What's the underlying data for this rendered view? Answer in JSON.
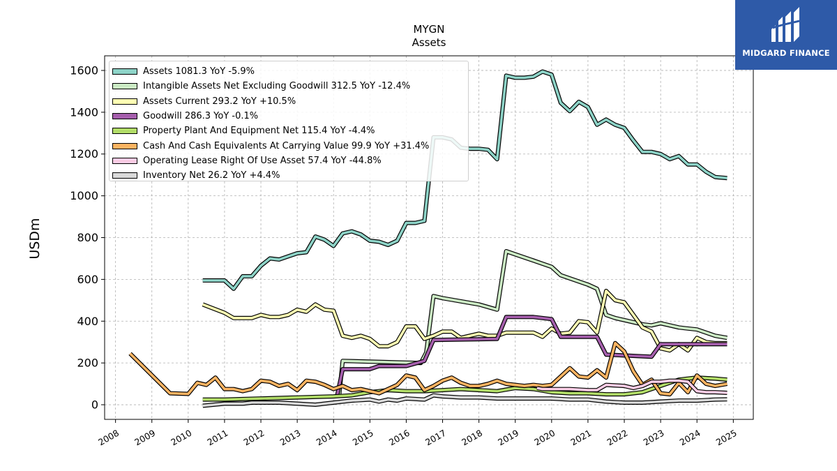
{
  "title": "MYGN",
  "subtitle": "Assets",
  "logo_text": "MIDGARD FINANCE",
  "chart_data": {
    "type": "line",
    "title": "MYGN",
    "subtitle": "Assets",
    "ylabel": "USDm",
    "xlim": [
      2007.7,
      2025.55
    ],
    "ylim": [
      -70,
      1670
    ],
    "yticks": [
      0,
      200,
      400,
      600,
      800,
      1000,
      1200,
      1400,
      1600
    ],
    "xticks": [
      2008,
      2009,
      2010,
      2011,
      2012,
      2013,
      2014,
      2015,
      2016,
      2017,
      2018,
      2019,
      2020,
      2021,
      2022,
      2023,
      2024,
      2025
    ],
    "grid": true,
    "legend_position": "top-left",
    "series": [
      {
        "name": "Assets",
        "legend": "Assets  1081.3 YoY -5.9%",
        "color": "#8dd3c7",
        "x": [
          2010.4,
          2011.0,
          2011.25,
          2011.5,
          2011.75,
          2012.0,
          2012.25,
          2012.5,
          2012.75,
          2013.0,
          2013.25,
          2013.5,
          2013.75,
          2014.0,
          2014.25,
          2014.5,
          2014.75,
          2015.0,
          2015.25,
          2015.5,
          2015.75,
          2016.0,
          2016.25,
          2016.5,
          2016.75,
          2017.0,
          2017.25,
          2017.5,
          2017.75,
          2018.0,
          2018.25,
          2018.5,
          2018.75,
          2019.0,
          2019.25,
          2019.5,
          2019.75,
          2020.0,
          2020.25,
          2020.5,
          2020.75,
          2021.0,
          2021.25,
          2021.5,
          2021.75,
          2022.0,
          2022.25,
          2022.5,
          2022.75,
          2023.0,
          2023.25,
          2023.5,
          2023.75,
          2024.0,
          2024.25,
          2024.5,
          2024.83
        ],
        "y": [
          595,
          595,
          555,
          615,
          615,
          665,
          700,
          695,
          710,
          725,
          730,
          805,
          790,
          760,
          820,
          830,
          815,
          785,
          780,
          765,
          785,
          870,
          870,
          880,
          1280,
          1280,
          1270,
          1230,
          1225,
          1225,
          1220,
          1175,
          1575,
          1565,
          1565,
          1570,
          1595,
          1580,
          1445,
          1405,
          1450,
          1425,
          1340,
          1365,
          1340,
          1325,
          1265,
          1210,
          1210,
          1200,
          1175,
          1190,
          1150,
          1150,
          1115,
          1090,
          1085
        ]
      },
      {
        "name": "Intangible Assets Net Excluding Goodwill",
        "legend": "Intangible Assets Net Excluding Goodwill  312.5 YoY -12.4%",
        "color": "#ccebc5",
        "x": [
          2014.15,
          2014.25,
          2016.4,
          2016.55,
          2016.75,
          2017.0,
          2017.5,
          2018.0,
          2018.5,
          2018.75,
          2019.0,
          2019.5,
          2019.75,
          2020.0,
          2020.25,
          2020.5,
          2020.75,
          2021.0,
          2021.25,
          2021.5,
          2021.75,
          2022.0,
          2022.25,
          2022.5,
          2022.75,
          2023.0,
          2023.25,
          2023.5,
          2023.75,
          2024.0,
          2024.25,
          2024.5,
          2024.83
        ],
        "y": [
          40,
          210,
          200,
          250,
          520,
          510,
          495,
          480,
          455,
          735,
          720,
          690,
          675,
          660,
          620,
          605,
          590,
          575,
          555,
          430,
          415,
          405,
          395,
          385,
          380,
          390,
          380,
          370,
          365,
          360,
          345,
          330,
          320
        ]
      },
      {
        "name": "Assets Current",
        "legend": "Assets Current  293.2 YoY +10.5%",
        "color": "#ffffb3",
        "x": [
          2010.4,
          2011.0,
          2011.25,
          2011.5,
          2011.75,
          2012.0,
          2012.25,
          2012.5,
          2012.75,
          2013.0,
          2013.25,
          2013.5,
          2013.75,
          2014.0,
          2014.25,
          2014.5,
          2014.75,
          2015.0,
          2015.25,
          2015.5,
          2015.75,
          2016.0,
          2016.25,
          2016.5,
          2016.75,
          2017.0,
          2017.25,
          2017.5,
          2017.75,
          2018.0,
          2018.25,
          2018.5,
          2018.75,
          2019.0,
          2019.25,
          2019.5,
          2019.75,
          2020.0,
          2020.25,
          2020.5,
          2020.75,
          2021.0,
          2021.25,
          2021.5,
          2021.75,
          2022.0,
          2022.25,
          2022.5,
          2022.75,
          2023.0,
          2023.25,
          2023.5,
          2023.75,
          2024.0,
          2024.25,
          2024.5,
          2024.83
        ],
        "y": [
          480,
          440,
          415,
          415,
          415,
          430,
          420,
          420,
          430,
          455,
          445,
          480,
          455,
          450,
          330,
          320,
          330,
          315,
          280,
          280,
          300,
          375,
          375,
          315,
          330,
          350,
          350,
          320,
          330,
          340,
          330,
          330,
          345,
          345,
          345,
          345,
          325,
          365,
          340,
          345,
          400,
          395,
          345,
          545,
          500,
          490,
          430,
          370,
          350,
          270,
          260,
          290,
          260,
          320,
          300,
          295,
          295
        ]
      },
      {
        "name": "Goodwill",
        "legend": "Goodwill  286.3 YoY -0.1%",
        "color": "#a65fad",
        "x": [
          2014.1,
          2014.25,
          2015.0,
          2015.25,
          2016.0,
          2016.5,
          2016.75,
          2018.5,
          2018.75,
          2019.5,
          2020.0,
          2020.25,
          2021.25,
          2021.5,
          2022.75,
          2023.0,
          2024.83
        ],
        "y": [
          45,
          170,
          170,
          185,
          185,
          210,
          310,
          315,
          420,
          420,
          410,
          325,
          325,
          240,
          230,
          290,
          290
        ]
      },
      {
        "name": "Property Plant And Equipment Net",
        "legend": "Property Plant And Equipment Net  115.4 YoY -4.4%",
        "color": "#b3de69",
        "x": [
          2010.4,
          2011.0,
          2012.0,
          2013.0,
          2014.0,
          2014.5,
          2015.0,
          2015.5,
          2016.0,
          2016.5,
          2017.0,
          2017.5,
          2018.0,
          2018.5,
          2019.0,
          2019.5,
          2020.0,
          2020.5,
          2021.0,
          2021.5,
          2022.0,
          2022.5,
          2023.0,
          2023.5,
          2024.0,
          2024.5,
          2024.83
        ],
        "y": [
          25,
          25,
          30,
          35,
          40,
          45,
          60,
          70,
          65,
          65,
          70,
          75,
          70,
          65,
          80,
          75,
          60,
          55,
          55,
          50,
          50,
          60,
          90,
          120,
          130,
          125,
          120
        ]
      },
      {
        "name": "Cash And Cash Equivalents At Carrying Value",
        "legend": "Cash And Cash Equivalents At Carrying Value  99.9 YoY +31.4%",
        "color": "#fdb462",
        "x": [
          2008.4,
          2009.5,
          2010.0,
          2010.25,
          2010.5,
          2010.75,
          2011.0,
          2011.25,
          2011.5,
          2011.75,
          2012.0,
          2012.25,
          2012.5,
          2012.75,
          2013.0,
          2013.25,
          2013.5,
          2013.75,
          2014.0,
          2014.25,
          2014.5,
          2014.75,
          2015.0,
          2015.25,
          2015.5,
          2015.75,
          2016.0,
          2016.25,
          2016.5,
          2016.75,
          2017.0,
          2017.25,
          2017.5,
          2017.75,
          2018.0,
          2018.25,
          2018.5,
          2018.75,
          2019.0,
          2019.25,
          2019.5,
          2019.75,
          2020.0,
          2020.25,
          2020.5,
          2020.75,
          2021.0,
          2021.25,
          2021.5,
          2021.75,
          2022.0,
          2022.25,
          2022.5,
          2022.75,
          2023.0,
          2023.25,
          2023.5,
          2023.75,
          2024.0,
          2024.25,
          2024.5,
          2024.83
        ],
        "y": [
          245,
          55,
          52,
          105,
          95,
          130,
          75,
          75,
          65,
          75,
          115,
          110,
          90,
          100,
          70,
          115,
          110,
          95,
          75,
          90,
          70,
          75,
          65,
          55,
          75,
          95,
          140,
          130,
          70,
          90,
          115,
          130,
          105,
          90,
          90,
          100,
          115,
          100,
          95,
          90,
          95,
          90,
          95,
          135,
          175,
          135,
          130,
          165,
          130,
          295,
          255,
          160,
          95,
          120,
          55,
          50,
          105,
          60,
          140,
          100,
          90,
          100
        ]
      },
      {
        "name": "Operating Lease Right Of Use Asset",
        "legend": "Operating Lease Right Of Use Asset  57.4 YoY -44.8%",
        "color": "#fccde5",
        "x": [
          2019.6,
          2019.75,
          2020.25,
          2020.5,
          2021.0,
          2021.25,
          2021.5,
          2022.0,
          2022.25,
          2022.5,
          2022.75,
          2023.0,
          2023.25,
          2023.5,
          2023.75,
          2024.0,
          2024.25,
          2024.5,
          2024.83
        ],
        "y": [
          80,
          75,
          75,
          75,
          70,
          70,
          95,
          90,
          80,
          90,
          110,
          110,
          115,
          115,
          110,
          65,
          60,
          60,
          57
        ]
      },
      {
        "name": "Inventory Net",
        "legend": "Inventory Net  26.2 YoY +4.4%",
        "color": "#d9d9d9",
        "x": [
          2010.4,
          2011.0,
          2011.5,
          2011.75,
          2012.5,
          2013.0,
          2013.5,
          2014.0,
          2014.5,
          2015.0,
          2015.25,
          2015.5,
          2015.75,
          2016.0,
          2016.5,
          2016.75,
          2017.0,
          2017.5,
          2018.0,
          2018.5,
          2019.0,
          2019.5,
          2020.0,
          2020.5,
          2021.0,
          2021.5,
          2022.0,
          2022.5,
          2023.0,
          2023.5,
          2024.0,
          2024.5,
          2024.83
        ],
        "y": [
          -5,
          5,
          5,
          10,
          10,
          5,
          0,
          10,
          20,
          25,
          15,
          25,
          20,
          30,
          25,
          45,
          40,
          35,
          35,
          30,
          30,
          30,
          30,
          25,
          25,
          15,
          10,
          10,
          15,
          20,
          20,
          25,
          26
        ]
      }
    ]
  }
}
